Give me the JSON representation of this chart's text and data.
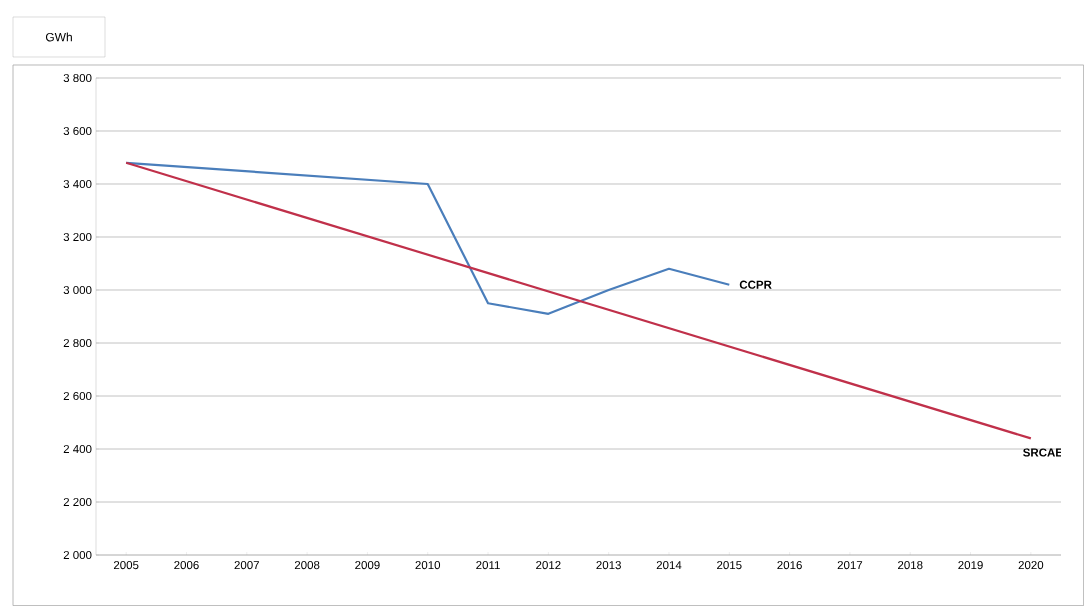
{
  "chart_data": {
    "type": "line",
    "ylabel": "GWh",
    "categories": [
      "2005",
      "2006",
      "2007",
      "2008",
      "2009",
      "2010",
      "2011",
      "2012",
      "2013",
      "2014",
      "2015",
      "2016",
      "2017",
      "2018",
      "2019",
      "2020"
    ],
    "series": [
      {
        "name": "CCPR",
        "color": "#4a7ebb",
        "values": [
          3480,
          null,
          null,
          null,
          null,
          3400,
          2950,
          2910,
          3000,
          3080,
          3020,
          null,
          null,
          null,
          null,
          null
        ]
      },
      {
        "name": "SRCAE",
        "color": "#c0304a",
        "values": [
          3480,
          null,
          null,
          null,
          null,
          null,
          null,
          null,
          null,
          null,
          null,
          null,
          null,
          null,
          null,
          2440
        ]
      }
    ],
    "ylim": [
      2000,
      3800
    ],
    "yticks": [
      {
        "value": 2000,
        "label": "2 000"
      },
      {
        "value": 2200,
        "label": "2 200"
      },
      {
        "value": 2400,
        "label": "2 400"
      },
      {
        "value": 2600,
        "label": "2 600"
      },
      {
        "value": 2800,
        "label": "2 800"
      },
      {
        "value": 3000,
        "label": "3 000"
      },
      {
        "value": 3200,
        "label": "3 200"
      },
      {
        "value": 3400,
        "label": "3 400"
      },
      {
        "value": 3600,
        "label": "3 600"
      },
      {
        "value": 3800,
        "label": "3 800"
      }
    ],
    "grid": "y",
    "legend": false,
    "marker": "none",
    "line_style": "solid"
  }
}
